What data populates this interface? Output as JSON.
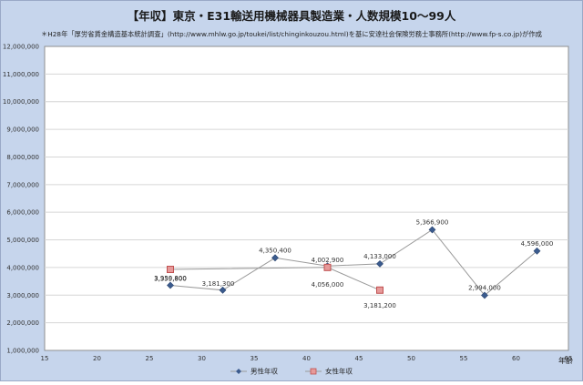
{
  "chart_data": {
    "type": "scatter",
    "title": "【年収】東京・E31輸送用機械器具製造業・人数規模10～99人",
    "subtitle": "＊H28年「厚労省賃金構造基本統計調査」(http://www.mhlw.go.jp/toukei/list/chinginkouzou.html)を基に安達社会保険労務士事務所(http://www.fp-s.co.jp)が作成",
    "xlabel": "年齢",
    "ylabel": "",
    "xlim": [
      15,
      65
    ],
    "ylim": [
      1000000,
      12000000
    ],
    "xticks": [
      15,
      20,
      25,
      30,
      35,
      40,
      45,
      50,
      55,
      60,
      65
    ],
    "yticks": [
      1000000,
      2000000,
      3000000,
      4000000,
      5000000,
      6000000,
      7000000,
      8000000,
      9000000,
      10000000,
      11000000,
      12000000
    ],
    "grid": "horizontal",
    "legend_position": "bottom",
    "series": [
      {
        "name": "男性年収",
        "color": "#3b5b8e",
        "marker": "diamond",
        "x": [
          27,
          32,
          37,
          42,
          47,
          52,
          57,
          62
        ],
        "y": [
          3355800,
          3181300,
          4350400,
          4056000,
          4133000,
          5366900,
          2994000,
          4596000
        ],
        "labels": [
          "3,355,800",
          "3,181,300",
          "4,350,400",
          "4,056,000",
          "4,133,000",
          "5,366,900",
          "2,994,000",
          "4,596,000"
        ]
      },
      {
        "name": "女性年収",
        "color": "#cf6a6a",
        "marker": "square",
        "x": [
          27,
          42,
          47
        ],
        "y": [
          3930800,
          4002900,
          3181200
        ],
        "labels": [
          "3,930,800",
          "4,002,900",
          "3,181,200"
        ]
      }
    ]
  }
}
